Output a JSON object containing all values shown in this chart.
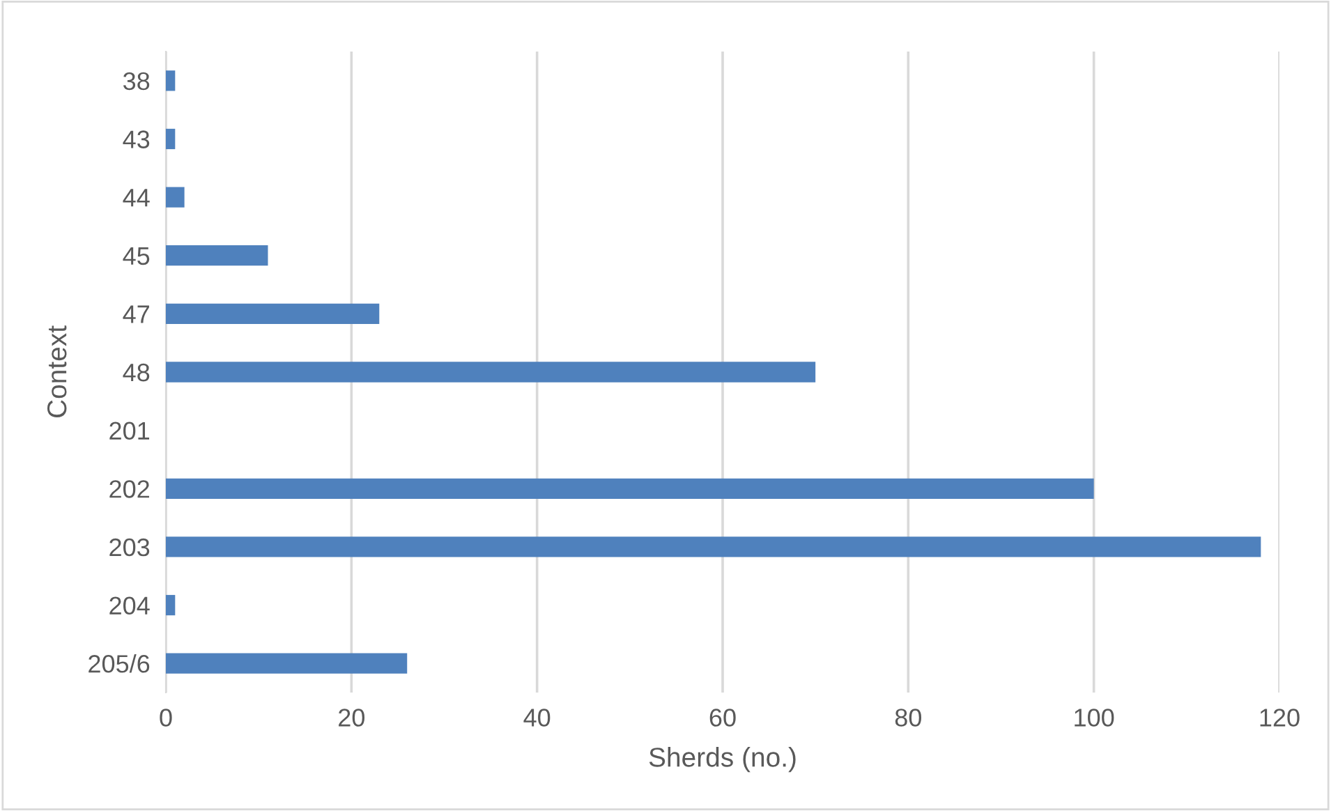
{
  "chart_data": {
    "type": "bar",
    "orientation": "horizontal",
    "xlabel": "Sherds (no.)",
    "ylabel": "Context",
    "categories": [
      "38",
      "43",
      "44",
      "45",
      "47",
      "48",
      "201",
      "202",
      "203",
      "204",
      "205/6"
    ],
    "values": [
      1,
      1,
      2,
      11,
      23,
      70,
      0,
      100,
      118,
      1,
      26
    ],
    "color": "#4f81bd",
    "xlim": [
      0,
      120
    ],
    "xticks": [
      0,
      20,
      40,
      60,
      80,
      100,
      120
    ],
    "grid": "x"
  }
}
